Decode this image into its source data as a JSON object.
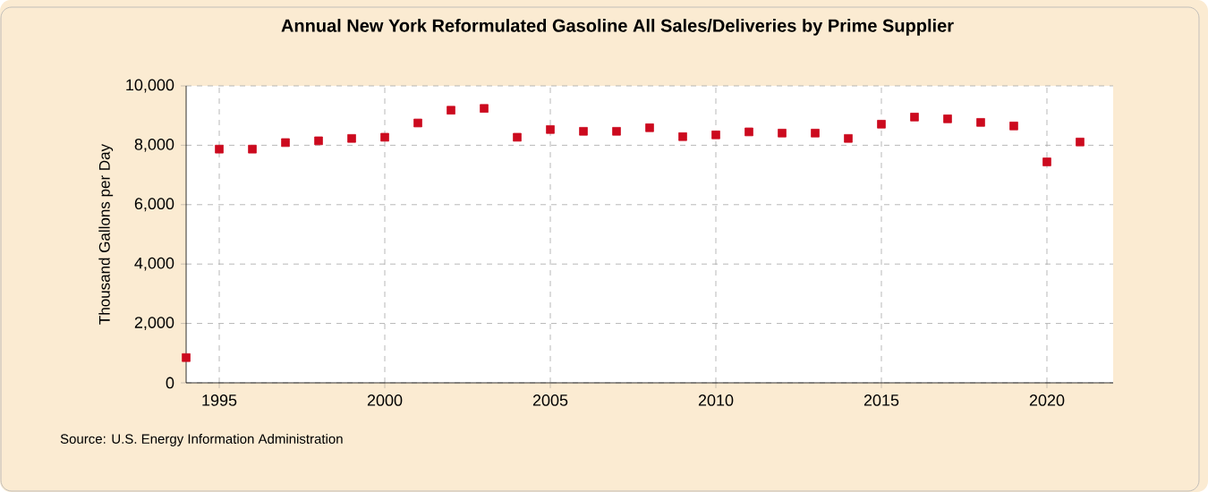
{
  "chart_data": {
    "type": "scatter",
    "title": "Annual New York Reformulated Gasoline All Sales/Deliveries by Prime Supplier",
    "ylabel": "Thousand Gallons per Day",
    "annotations": [
      "Source: U.S. Energy Information Administration"
    ],
    "x": [
      1994,
      1995,
      1996,
      1997,
      1998,
      1999,
      2000,
      2001,
      2002,
      2003,
      2004,
      2005,
      2006,
      2007,
      2008,
      2009,
      2010,
      2011,
      2012,
      2013,
      2014,
      2015,
      2016,
      2017,
      2018,
      2019,
      2020,
      2021
    ],
    "values": [
      850,
      7870,
      7870,
      8090,
      8150,
      8230,
      8270,
      8750,
      9180,
      9240,
      8270,
      8530,
      8470,
      8470,
      8590,
      8290,
      8350,
      8450,
      8410,
      8410,
      8230,
      8710,
      8950,
      8890,
      8770,
      8650,
      7440,
      8110
    ],
    "color": "#cc0a1e",
    "marker": "square",
    "grid": true,
    "xlim": [
      1994,
      2022
    ],
    "xticks": [
      1995,
      2000,
      2005,
      2010,
      2015,
      2020
    ],
    "ylim": [
      0,
      10000
    ],
    "yticks": [
      {
        "value": 0,
        "label": "0"
      },
      {
        "value": 2000,
        "label": "2,000"
      },
      {
        "value": 4000,
        "label": "4,000"
      },
      {
        "value": 6000,
        "label": "6,000"
      },
      {
        "value": 8000,
        "label": "8,000"
      },
      {
        "value": 10000,
        "label": "10,000"
      }
    ]
  }
}
